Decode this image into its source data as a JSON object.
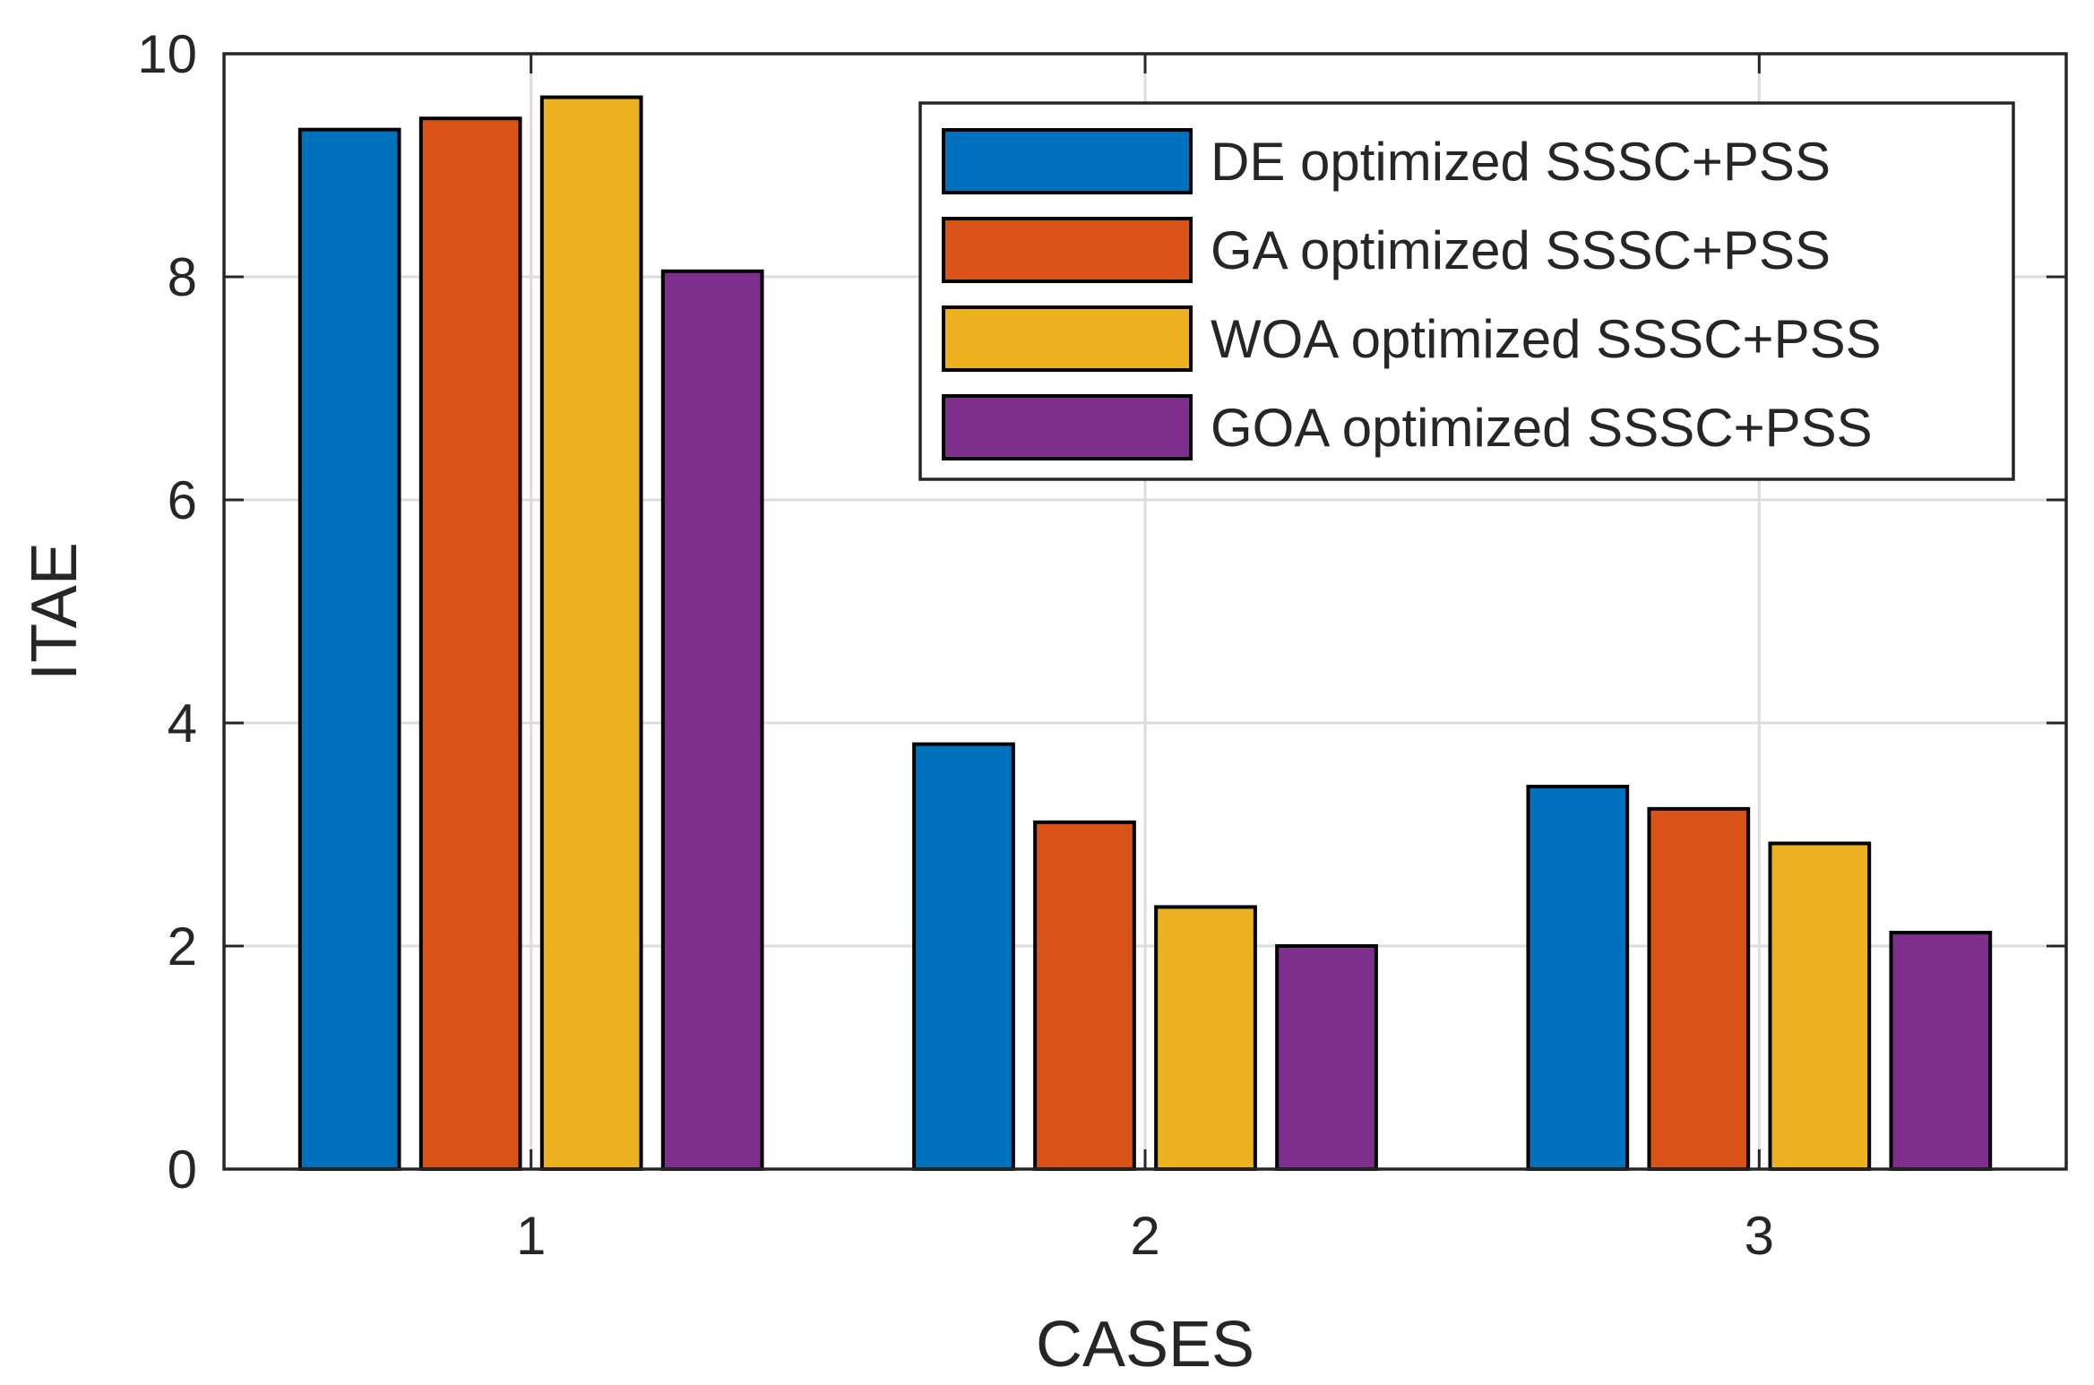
{
  "chart_data": {
    "type": "bar",
    "title": "",
    "xlabel": "CASES",
    "ylabel": "ITAE",
    "categories": [
      "1",
      "2",
      "3"
    ],
    "ylim": [
      0,
      10
    ],
    "yticks": [
      0,
      2,
      4,
      6,
      8,
      10
    ],
    "yticks_labels": [
      "0",
      "2",
      "4",
      "6",
      "8",
      "10"
    ],
    "grid": true,
    "legend_position": "top-right",
    "series": [
      {
        "name": "DE optimized SSSC+PSS",
        "color": "#0072BD",
        "values": [
          9.32,
          3.81,
          3.43
        ]
      },
      {
        "name": "GA optimized SSSC+PSS",
        "color": "#D95319",
        "values": [
          9.42,
          3.11,
          3.23
        ]
      },
      {
        "name": "WOA optimized SSSC+PSS",
        "color": "#EDB120",
        "values": [
          9.61,
          2.35,
          2.92
        ]
      },
      {
        "name": "GOA optimized SSSC+PSS",
        "color": "#7E2F8E",
        "values": [
          8.05,
          2.0,
          2.12
        ]
      }
    ]
  }
}
